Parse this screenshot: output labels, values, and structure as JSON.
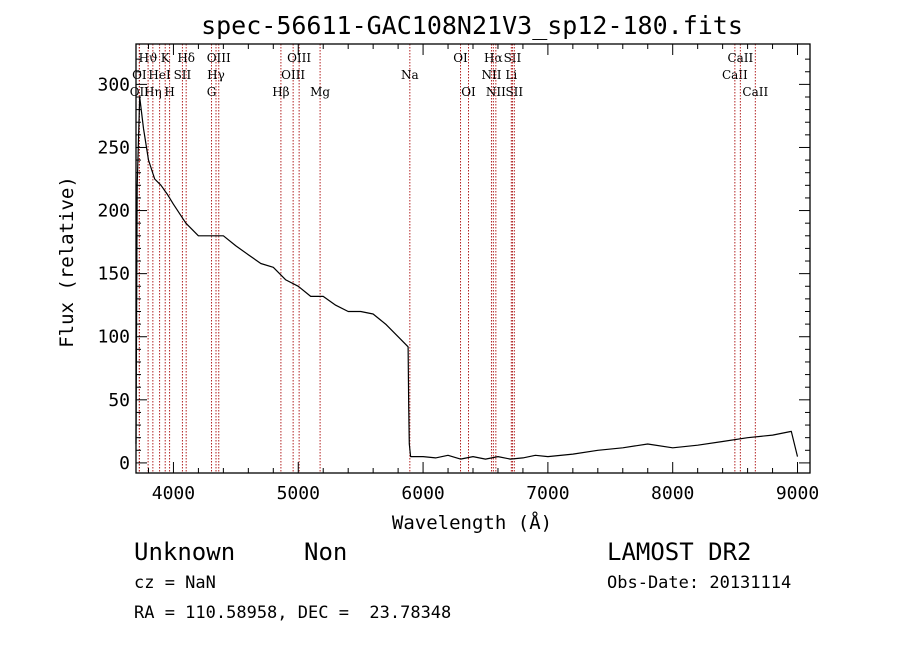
{
  "chart_data": {
    "type": "line",
    "title": "spec-56611-GAC108N21V3_sp12-180.fits",
    "xlabel": "Wavelength (Å)",
    "ylabel": "Flux (relative)",
    "xlim": [
      3700,
      9100
    ],
    "ylim": [
      -8,
      332
    ],
    "xticks": [
      4000,
      5000,
      6000,
      7000,
      8000,
      9000
    ],
    "yticks": [
      0,
      50,
      100,
      150,
      200,
      250,
      300
    ],
    "series": [
      {
        "x": [
          3700,
          3710,
          3730,
          3760,
          3800,
          3850,
          3900,
          3950,
          4000,
          4100,
          4200,
          4300,
          4400,
          4500,
          4600,
          4700,
          4800,
          4900,
          5000,
          5100,
          5200,
          5300,
          5400,
          5500,
          5600,
          5700,
          5800,
          5880,
          5885,
          5890,
          5900,
          5950,
          6000,
          6100,
          6200,
          6300,
          6400,
          6500,
          6600,
          6700,
          6800,
          6900,
          7000,
          7200,
          7400,
          7600,
          7800,
          8000,
          8200,
          8400,
          8600,
          8800,
          8950,
          9000
        ],
        "y": [
          15,
          220,
          290,
          265,
          240,
          225,
          220,
          213,
          205,
          190,
          180,
          180,
          180,
          172,
          165,
          158,
          155,
          145,
          140,
          132,
          132,
          125,
          120,
          120,
          118,
          110,
          100,
          92,
          45,
          15,
          5,
          5,
          5,
          4,
          6,
          3,
          5,
          3,
          5,
          3,
          4,
          6,
          5,
          7,
          10,
          12,
          15,
          12,
          14,
          17,
          20,
          22,
          25,
          5
        ]
      }
    ],
    "lines": [
      {
        "label": "OII",
        "x": 3727,
        "row": 3
      },
      {
        "label": "OI",
        "x": 3727,
        "row": 2
      },
      {
        "label": "Hϑ",
        "x": 3797,
        "row": 1
      },
      {
        "label": "Hη",
        "x": 3835,
        "row": 3
      },
      {
        "label": "HeI",
        "x": 3889,
        "row": 2
      },
      {
        "label": "K",
        "x": 3934,
        "row": 1
      },
      {
        "label": "H",
        "x": 3969,
        "row": 3
      },
      {
        "label": "SII",
        "x": 4072,
        "row": 2
      },
      {
        "label": "Hδ",
        "x": 4102,
        "row": 1
      },
      {
        "label": "G",
        "x": 4305,
        "row": 3
      },
      {
        "label": "Hγ",
        "x": 4341,
        "row": 2
      },
      {
        "label": "OIII",
        "x": 4363,
        "row": 1
      },
      {
        "label": "Hβ",
        "x": 4861,
        "row": 3
      },
      {
        "label": "OIII",
        "x": 4959,
        "row": 2
      },
      {
        "label": "OIII",
        "x": 5007,
        "row": 1
      },
      {
        "label": "Mg",
        "x": 5175,
        "row": 3
      },
      {
        "label": "Na",
        "x": 5894,
        "row": 2
      },
      {
        "label": "OI",
        "x": 6300,
        "row": 1
      },
      {
        "label": "OI",
        "x": 6364,
        "row": 3
      },
      {
        "label": "NII",
        "x": 6548,
        "row": 2
      },
      {
        "label": "Hα",
        "x": 6563,
        "row": 1
      },
      {
        "label": "NII",
        "x": 6583,
        "row": 3
      },
      {
        "label": "Li",
        "x": 6707,
        "row": 2
      },
      {
        "label": "SII",
        "x": 6716,
        "row": 1
      },
      {
        "label": "SII",
        "x": 6731,
        "row": 3
      },
      {
        "label": "CaII",
        "x": 8498,
        "row": 2
      },
      {
        "label": "CaII",
        "x": 8542,
        "row": 1
      },
      {
        "label": "CaII",
        "x": 8662,
        "row": 3
      }
    ]
  },
  "info": {
    "class": "Unknown",
    "subclass": "Non",
    "release": "LAMOST DR2",
    "cz": "cz = NaN",
    "obs_date": "Obs-Date: 20131114",
    "coords": "RA = 110.58958, DEC =  23.78348"
  },
  "colors": {
    "spectrum": "#000000",
    "line_markers": "#b22222"
  }
}
